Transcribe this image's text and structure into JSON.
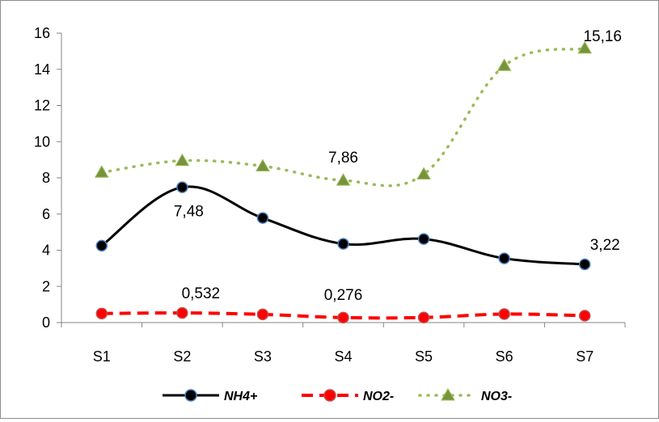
{
  "chart_data": {
    "type": "line",
    "categories": [
      "S1",
      "S2",
      "S3",
      "S4",
      "S5",
      "S6",
      "S7"
    ],
    "ylim": [
      0,
      16
    ],
    "yticks": [
      "0",
      "2",
      "4",
      "6",
      "8",
      "10",
      "12",
      "14",
      "16"
    ],
    "grid": false,
    "legend_position": "bottom",
    "series": [
      {
        "name": "NH4+",
        "values": [
          4.25,
          7.48,
          5.78,
          4.35,
          4.62,
          3.55,
          3.22
        ],
        "color": "#000000",
        "line_style": "solid",
        "marker": "circle",
        "marker_fill": "#000000",
        "marker_stroke": "#4f81bd"
      },
      {
        "name": "NO2-",
        "values": [
          0.5,
          0.532,
          0.45,
          0.276,
          0.28,
          0.47,
          0.38
        ],
        "color": "#ff0000",
        "line_style": "dashed",
        "marker": "circle",
        "marker_fill": "#ff0000",
        "marker_stroke": "#c0504d"
      },
      {
        "name": "NO3-",
        "values": [
          8.3,
          8.95,
          8.65,
          7.86,
          8.2,
          14.2,
          15.16
        ],
        "color": "#9bbb59",
        "line_style": "dotted",
        "marker": "triangle",
        "marker_fill": "#77933c",
        "marker_stroke": "#9bbb59"
      }
    ],
    "data_labels": [
      {
        "series": 0,
        "index": 1,
        "text": "7,48"
      },
      {
        "series": 0,
        "index": 6,
        "text": "3,22"
      },
      {
        "series": 1,
        "index": 1,
        "text": "0,532"
      },
      {
        "series": 1,
        "index": 3,
        "text": "0,276"
      },
      {
        "series": 2,
        "index": 3,
        "text": "7,86"
      },
      {
        "series": 2,
        "index": 6,
        "text": "15,16"
      }
    ]
  }
}
